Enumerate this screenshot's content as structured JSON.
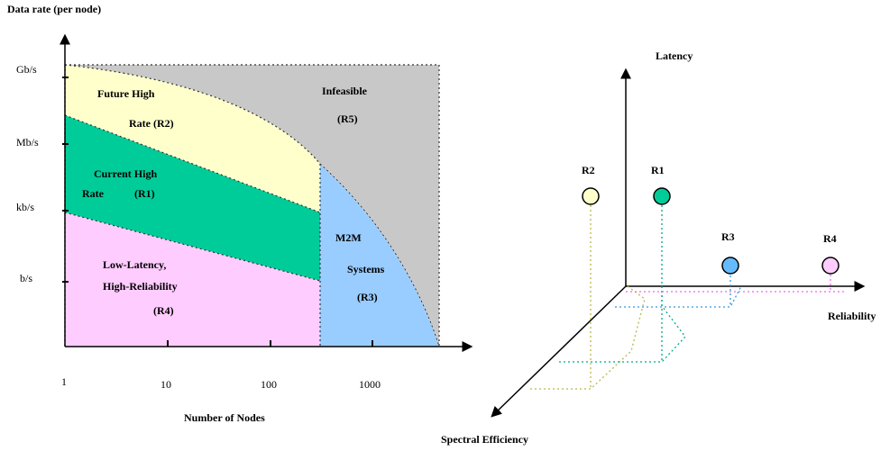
{
  "left_chart": {
    "y_axis_title": "Data rate (per node)",
    "x_axis_title": "Number of Nodes",
    "y_ticks": [
      "Gb/s",
      "Mb/s",
      "kb/s",
      "b/s"
    ],
    "x_ticks": [
      "1",
      "10",
      "100",
      "1000"
    ],
    "regions": [
      {
        "id": "r2",
        "lines": [
          "Future High",
          "Rate (R2)"
        ],
        "color": "#ffffcc"
      },
      {
        "id": "r1",
        "lines": [
          "Current High",
          "Rate",
          "(R1)"
        ],
        "color": "#00cc99"
      },
      {
        "id": "r4",
        "lines": [
          "Low-Latency,",
          "High-Reliability",
          "(R4)"
        ],
        "color": "#ffccff"
      },
      {
        "id": "r3",
        "lines": [
          "M2M",
          "Systems",
          "(R3)"
        ],
        "color": "#99ccff"
      },
      {
        "id": "r5",
        "lines": [
          "Infeasible",
          "(R5)"
        ],
        "color": "#c8c8c8"
      }
    ]
  },
  "right_chart": {
    "axes": {
      "latency": "Latency",
      "reliability": "Reliability",
      "spectral": "Spectral Efficiency"
    },
    "points": [
      {
        "id": "R2",
        "label": "R2",
        "fill": "#ffffcc",
        "drop": "#b8b84a"
      },
      {
        "id": "R1",
        "label": "R1",
        "fill": "#00cc99",
        "drop": "#00aa88"
      },
      {
        "id": "R3",
        "label": "R3",
        "fill": "#66bbff",
        "drop": "#3399dd"
      },
      {
        "id": "R4",
        "label": "R4",
        "fill": "#ffccff",
        "drop": "#ee66ee"
      }
    ]
  }
}
